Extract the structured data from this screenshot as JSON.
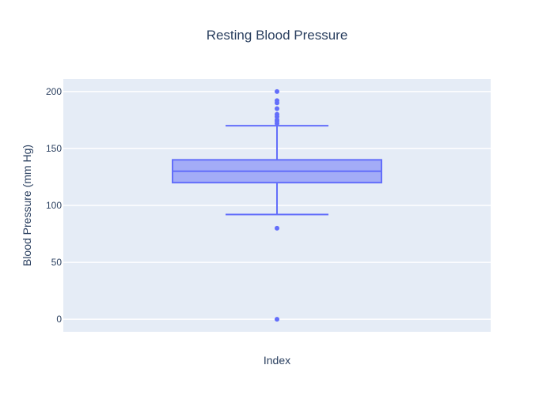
{
  "chart_data": {
    "type": "box",
    "title": "Resting Blood Pressure",
    "xlabel": "Index",
    "ylabel": "Blood Pressure (mm Hg)",
    "ylim": [
      -11,
      211
    ],
    "yticks": [
      0,
      50,
      100,
      150,
      200
    ],
    "grid": true,
    "colors": {
      "plot_bg": "#e5ecf6",
      "grid": "#ffffff",
      "box_fill": "#a3acf7",
      "box_line": "#636efa"
    },
    "box": {
      "q1": 120,
      "median": 130,
      "q3": 140,
      "lower_fence": 92,
      "upper_fence": 170,
      "outliers": [
        0,
        80,
        172,
        174,
        175,
        178,
        180,
        185,
        190,
        192,
        200
      ]
    }
  }
}
